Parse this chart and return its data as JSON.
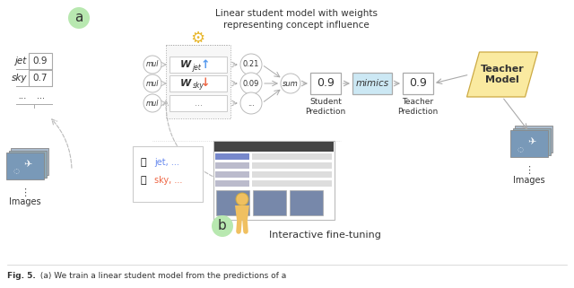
{
  "title_text": "Linear student model with weights\nrepresenting concept influence",
  "label_a": "a",
  "label_b": "b",
  "concept_labels": [
    "jet",
    "sky",
    "..."
  ],
  "concept_values": [
    "0.9",
    "0.7",
    "..."
  ],
  "output_values": [
    "0.21",
    "0.09",
    "..."
  ],
  "student_pred": "0.9",
  "mimics_label": "mimics",
  "teacher_pred": "0.9",
  "teacher_label": "Teacher\nModel",
  "student_pred_label": "Student\nPrediction",
  "teacher_pred_label": "Teacher\nPrediction",
  "images_label_left": "Images",
  "images_label_right": "Images",
  "interactive_label": "Interactive fine-tuning",
  "thumb_up_label": "jet, ...",
  "thumb_down_label": "sky, ...",
  "bg_color": "#ffffff",
  "mimics_bg": "#cce8f4",
  "teacher_bg": "#faeaa0",
  "a_circle_color": "#b8e8b0",
  "b_circle_color": "#b8e8b0",
  "gear_color": "#e8b830",
  "arrow_color": "#999999",
  "text_color": "#333333",
  "weight_up_color": "#5599ee",
  "weight_down_color": "#ee6644",
  "person_color": "#f0c060",
  "figcap": "Fig. 5.",
  "figcap_rest": " (a) We train a linear student model from the predictions of a"
}
